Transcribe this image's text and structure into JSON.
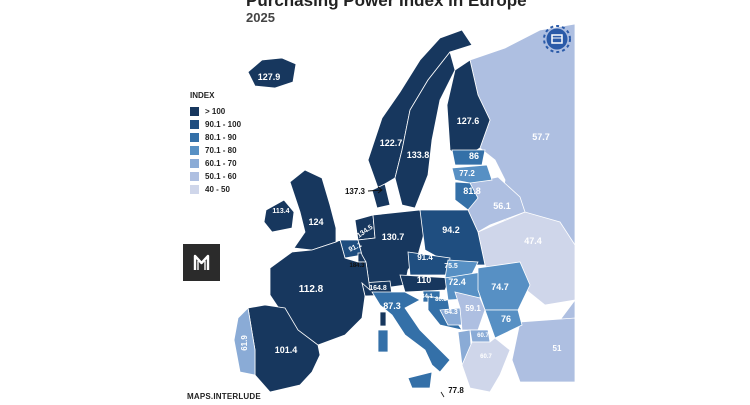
{
  "title": "Purchasing Power Index in Europe",
  "subtitle": "2025",
  "legend": {
    "title": "INDEX",
    "items": [
      {
        "label": "> 100",
        "color": "#17375e"
      },
      {
        "label": "90.1 - 100",
        "color": "#1f4e80"
      },
      {
        "label": "80.1 - 90",
        "color": "#3470a8"
      },
      {
        "label": "70.1 - 80",
        "color": "#5790c4"
      },
      {
        "label": "60.1 - 70",
        "color": "#8aabd6"
      },
      {
        "label": "50.1 - 60",
        "color": "#aebfe1"
      },
      {
        "label": "40 - 50",
        "color": "#cfd6ea"
      }
    ]
  },
  "credit": "MAPS.INTERLUDE",
  "regions": [
    {
      "name": "Iceland",
      "value": "127.9"
    },
    {
      "name": "Norway",
      "value": "122.7"
    },
    {
      "name": "Sweden",
      "value": "133.8"
    },
    {
      "name": "Finland",
      "value": "127.6"
    },
    {
      "name": "Russia",
      "value": "57.7"
    },
    {
      "name": "Estonia",
      "value": "86"
    },
    {
      "name": "Latvia",
      "value": "77.2"
    },
    {
      "name": "Lithuania",
      "value": "81.8"
    },
    {
      "name": "Belarus",
      "value": "56.1"
    },
    {
      "name": "Ukraine",
      "value": "47.4"
    },
    {
      "name": "Denmark",
      "value": "137.3"
    },
    {
      "name": "United Kingdom",
      "value": "124"
    },
    {
      "name": "Ireland",
      "value": "113.4"
    },
    {
      "name": "Netherlands",
      "value": "134.5"
    },
    {
      "name": "Belgium",
      "value": "91.1"
    },
    {
      "name": "Luxembourg",
      "value": "184.3"
    },
    {
      "name": "Germany",
      "value": "130.7"
    },
    {
      "name": "Poland",
      "value": "94.2"
    },
    {
      "name": "Czechia",
      "value": "91.4"
    },
    {
      "name": "Slovakia",
      "value": "75.5"
    },
    {
      "name": "Austria",
      "value": "110"
    },
    {
      "name": "Switzerland",
      "value": "164.8"
    },
    {
      "name": "France",
      "value": "112.8"
    },
    {
      "name": "Hungary",
      "value": "72.4"
    },
    {
      "name": "Romania",
      "value": "74.7"
    },
    {
      "name": "Slovenia",
      "value": "84.1"
    },
    {
      "name": "Croatia",
      "value": "80.8"
    },
    {
      "name": "Bosnia and Herzegovina",
      "value": "64.3"
    },
    {
      "name": "Serbia",
      "value": "59.1"
    },
    {
      "name": "Bulgaria",
      "value": "76"
    },
    {
      "name": "North Macedonia",
      "value": "60.7"
    },
    {
      "name": "Albania",
      "value": "60.7"
    },
    {
      "name": "Italy",
      "value": "87.3"
    },
    {
      "name": "Malta",
      "value": "77.8"
    },
    {
      "name": "Spain",
      "value": "101.4"
    },
    {
      "name": "Portugal",
      "value": "61.9"
    },
    {
      "name": "Turkey",
      "value": "51"
    }
  ]
}
